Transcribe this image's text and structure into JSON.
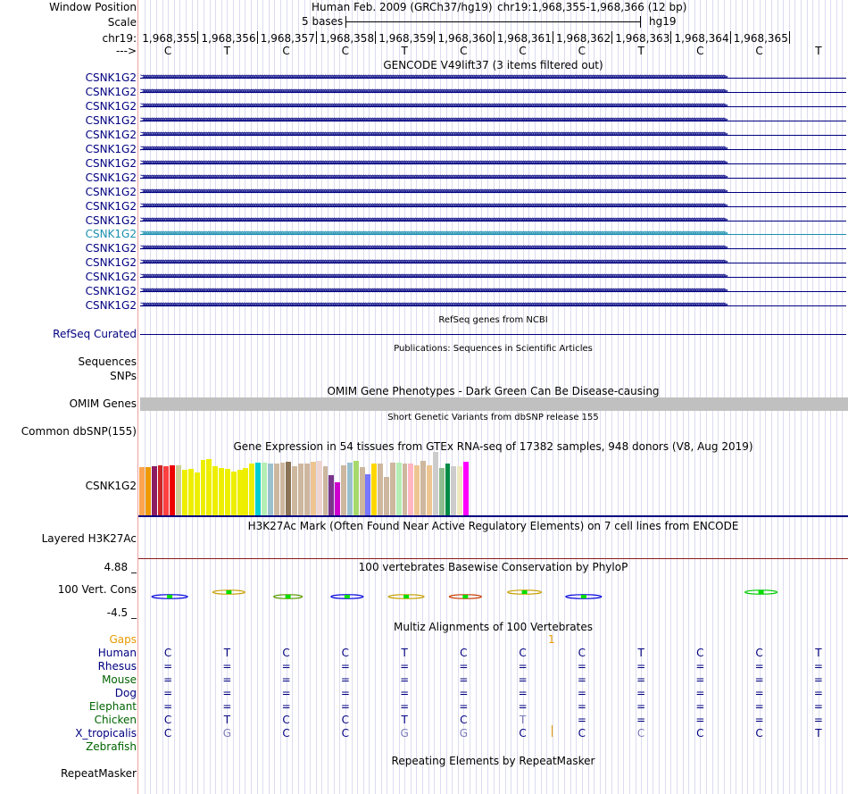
{
  "header": {
    "window_position_label": "Window Position",
    "scale_label": "Scale",
    "chr_label": "chr19:",
    "strand_label": "--->",
    "assembly_title": "Human Feb. 2009 (GRCh37/hg19)",
    "position": "chr19:1,968,355-1,968,366 (12 bp)",
    "scale_text": "5 bases",
    "db": "hg19",
    "coordinates": [
      "1,968,355",
      "1,968,356",
      "1,968,357",
      "1,968,358",
      "1,968,359",
      "1,968,360",
      "1,968,361",
      "1,968,362",
      "1,968,363",
      "1,968,364",
      "1,968,365"
    ],
    "bases": [
      "C",
      "T",
      "C",
      "C",
      "T",
      "C",
      "C",
      "C",
      "T",
      "C",
      "C",
      "T"
    ]
  },
  "gencode": {
    "title": "GENCODE V49lift37 (3 items filtered out)",
    "gene_labels": [
      "CSNK1G2",
      "CSNK1G2",
      "CSNK1G2",
      "CSNK1G2",
      "CSNK1G2",
      "CSNK1G2",
      "CSNK1G2",
      "CSNK1G2",
      "CSNK1G2",
      "CSNK1G2",
      "CSNK1G2",
      "CSNK1G2",
      "CSNK1G2",
      "CSNK1G2",
      "CSNK1G2",
      "CSNK1G2",
      "CSNK1G2"
    ],
    "highlight_index": 11,
    "highlight_color": "#1a8fb0",
    "gene_color": "#000080"
  },
  "refseq": {
    "title": "RefSeq genes from NCBI",
    "label": "RefSeq Curated"
  },
  "publications": {
    "title": "Publications: Sequences in Scientific Articles",
    "label1": "Sequences",
    "label2": "SNPs"
  },
  "omim": {
    "title": "OMIM Gene Phenotypes - Dark Green Can Be Disease-causing",
    "label": "OMIM Genes",
    "color": "#006400"
  },
  "dbsnp": {
    "title": "Short Genetic Variants from dbSNP release 155",
    "label": "Common dbSNP(155)"
  },
  "gtex": {
    "title": "Gene Expression in 54 tissues from GTEx RNA-seq of 17382 samples, 948 donors (V8, Aug 2019)",
    "label": "CSNK1G2",
    "tissues": [
      {
        "color": "#FFA54F",
        "level": 0.87
      },
      {
        "color": "#EE9A00",
        "level": 0.87
      },
      {
        "color": "#8B1C62",
        "level": 0.89
      },
      {
        "color": "#CD2626",
        "level": 0.91
      },
      {
        "color": "#FF4040",
        "level": 0.89
      },
      {
        "color": "#EE0000",
        "level": 0.91
      },
      {
        "color": "#CCCC99",
        "level": 0.91
      },
      {
        "color": "#EEEE00",
        "level": 0.82
      },
      {
        "color": "#EEEE00",
        "level": 0.84
      },
      {
        "color": "#EEEE00",
        "level": 0.78
      },
      {
        "color": "#EEEE00",
        "level": 1.0
      },
      {
        "color": "#EEEE00",
        "level": 1.02
      },
      {
        "color": "#EEEE00",
        "level": 0.89
      },
      {
        "color": "#EEEE00",
        "level": 0.85
      },
      {
        "color": "#EEEE00",
        "level": 0.84
      },
      {
        "color": "#EEEE00",
        "level": 0.79
      },
      {
        "color": "#EEEE00",
        "level": 0.82
      },
      {
        "color": "#EEEE00",
        "level": 0.85
      },
      {
        "color": "#EEEE00",
        "level": 0.94
      },
      {
        "color": "#00CED1",
        "level": 0.95
      },
      {
        "color": "#B4EEB4",
        "level": 0.95
      },
      {
        "color": "#9AC0CD",
        "level": 0.94
      },
      {
        "color": "#CDB79E",
        "level": 0.94
      },
      {
        "color": "#CDB79E",
        "level": 0.95
      },
      {
        "color": "#8B7355",
        "level": 0.96
      },
      {
        "color": "#CDB79E",
        "level": 0.89
      },
      {
        "color": "#CDB79E",
        "level": 0.93
      },
      {
        "color": "#CDB79E",
        "level": 0.94
      },
      {
        "color": "#EEC591",
        "level": 0.96
      },
      {
        "color": "#EED5D2",
        "level": 0.99
      },
      {
        "color": "#CDB79E",
        "level": 0.89
      },
      {
        "color": "#7A378B",
        "level": 0.73
      },
      {
        "color": "#CD00CD",
        "level": 0.6
      },
      {
        "color": "#CDB79E",
        "level": 0.91
      },
      {
        "color": "#9AC0CD",
        "level": 0.95
      },
      {
        "color": "#A6D96A",
        "level": 0.99
      },
      {
        "color": "#CDB79E",
        "level": 0.87
      },
      {
        "color": "#7777FF",
        "level": 0.75
      },
      {
        "color": "#FFD700",
        "level": 0.93
      },
      {
        "color": "#CDB79E",
        "level": 0.93
      },
      {
        "color": "#CDB79E",
        "level": 0.7
      },
      {
        "color": "#CDB79E",
        "level": 0.95
      },
      {
        "color": "#B4EEB4",
        "level": 0.95
      },
      {
        "color": "#CDB79E",
        "level": 0.93
      },
      {
        "color": "#FFB6C1",
        "level": 0.93
      },
      {
        "color": "#EEC591",
        "level": 0.91
      },
      {
        "color": "#CDB79E",
        "level": 0.98
      },
      {
        "color": "#EEC591",
        "level": 0.91
      },
      {
        "color": "#CCCCCC",
        "level": 1.15
      },
      {
        "color": "#8FBC8F",
        "level": 0.86
      },
      {
        "color": "#008B45",
        "level": 0.93
      },
      {
        "color": "#CCCCCC",
        "level": 0.89
      },
      {
        "color": "#EEE9BF",
        "level": 0.89
      },
      {
        "color": "#FF00FF",
        "level": 0.96
      }
    ]
  },
  "h3k27ac": {
    "title": "H3K27Ac Mark (Often Found Near Active Regulatory Elements) on 7 cell lines from ENCODE",
    "label": "Layered H3K27Ac"
  },
  "conservation": {
    "title": "100 vertebrates Basewise Conservation by PhyloP",
    "label": "100 Vert. Cons",
    "max_label": "4.88 _",
    "min_label": "-4.5 _",
    "title_color": "#333399",
    "max_color": "#333399",
    "min_color": "#8B0000"
  },
  "multiz": {
    "title": "Multiz Alignments of 100 Vertebrates",
    "gaps_label": "Gaps",
    "gap_count": "1",
    "species": [
      "Human",
      "Rhesus",
      "Mouse",
      "Dog",
      "Elephant",
      "Chicken",
      "X_tropicalis",
      "Zebrafish"
    ],
    "species_colors": [
      "#000080",
      "#000080",
      "#006400",
      "#000080",
      "#006400",
      "#006400",
      "#000080",
      "#006400"
    ],
    "rows": [
      [
        "C",
        "T",
        "C",
        "C",
        "T",
        "C",
        "C",
        "C",
        "T",
        "C",
        "C",
        "T"
      ],
      [
        "=",
        "=",
        "=",
        "=",
        "=",
        "=",
        "=",
        "=",
        "=",
        "=",
        "=",
        "="
      ],
      [
        "=",
        "=",
        "=",
        "=",
        "=",
        "=",
        "=",
        "=",
        "=",
        "=",
        "=",
        "="
      ],
      [
        "=",
        "=",
        "=",
        "=",
        "=",
        "=",
        "=",
        "=",
        "=",
        "=",
        "=",
        "="
      ],
      [
        "=",
        "=",
        "=",
        "=",
        "=",
        "=",
        "=",
        "=",
        "=",
        "=",
        "=",
        "="
      ],
      [
        "C",
        "T",
        "C",
        "C",
        "T",
        "C",
        "T",
        "=",
        "=",
        "=",
        "=",
        "="
      ],
      [
        "C",
        "G",
        "C",
        "C",
        "G",
        "G",
        "C",
        "C",
        "C",
        "C",
        "C",
        "T"
      ]
    ],
    "faded": [
      [
        false,
        false,
        false,
        false,
        false,
        false,
        false,
        false,
        false,
        false,
        false,
        false
      ],
      [
        false,
        false,
        false,
        false,
        false,
        false,
        false,
        false,
        false,
        false,
        false,
        false
      ],
      [
        false,
        false,
        false,
        false,
        false,
        false,
        false,
        false,
        false,
        false,
        false,
        false
      ],
      [
        false,
        false,
        false,
        false,
        false,
        false,
        false,
        false,
        false,
        false,
        false,
        false
      ],
      [
        false,
        false,
        false,
        false,
        false,
        false,
        false,
        false,
        false,
        false,
        false,
        false
      ],
      [
        false,
        false,
        false,
        false,
        false,
        false,
        true,
        false,
        false,
        false,
        false,
        false
      ],
      [
        false,
        true,
        false,
        false,
        true,
        true,
        false,
        false,
        true,
        false,
        false,
        false
      ]
    ]
  },
  "repeatmasker": {
    "title": "Repeating Elements by RepeatMasker",
    "label": "RepeatMasker"
  }
}
